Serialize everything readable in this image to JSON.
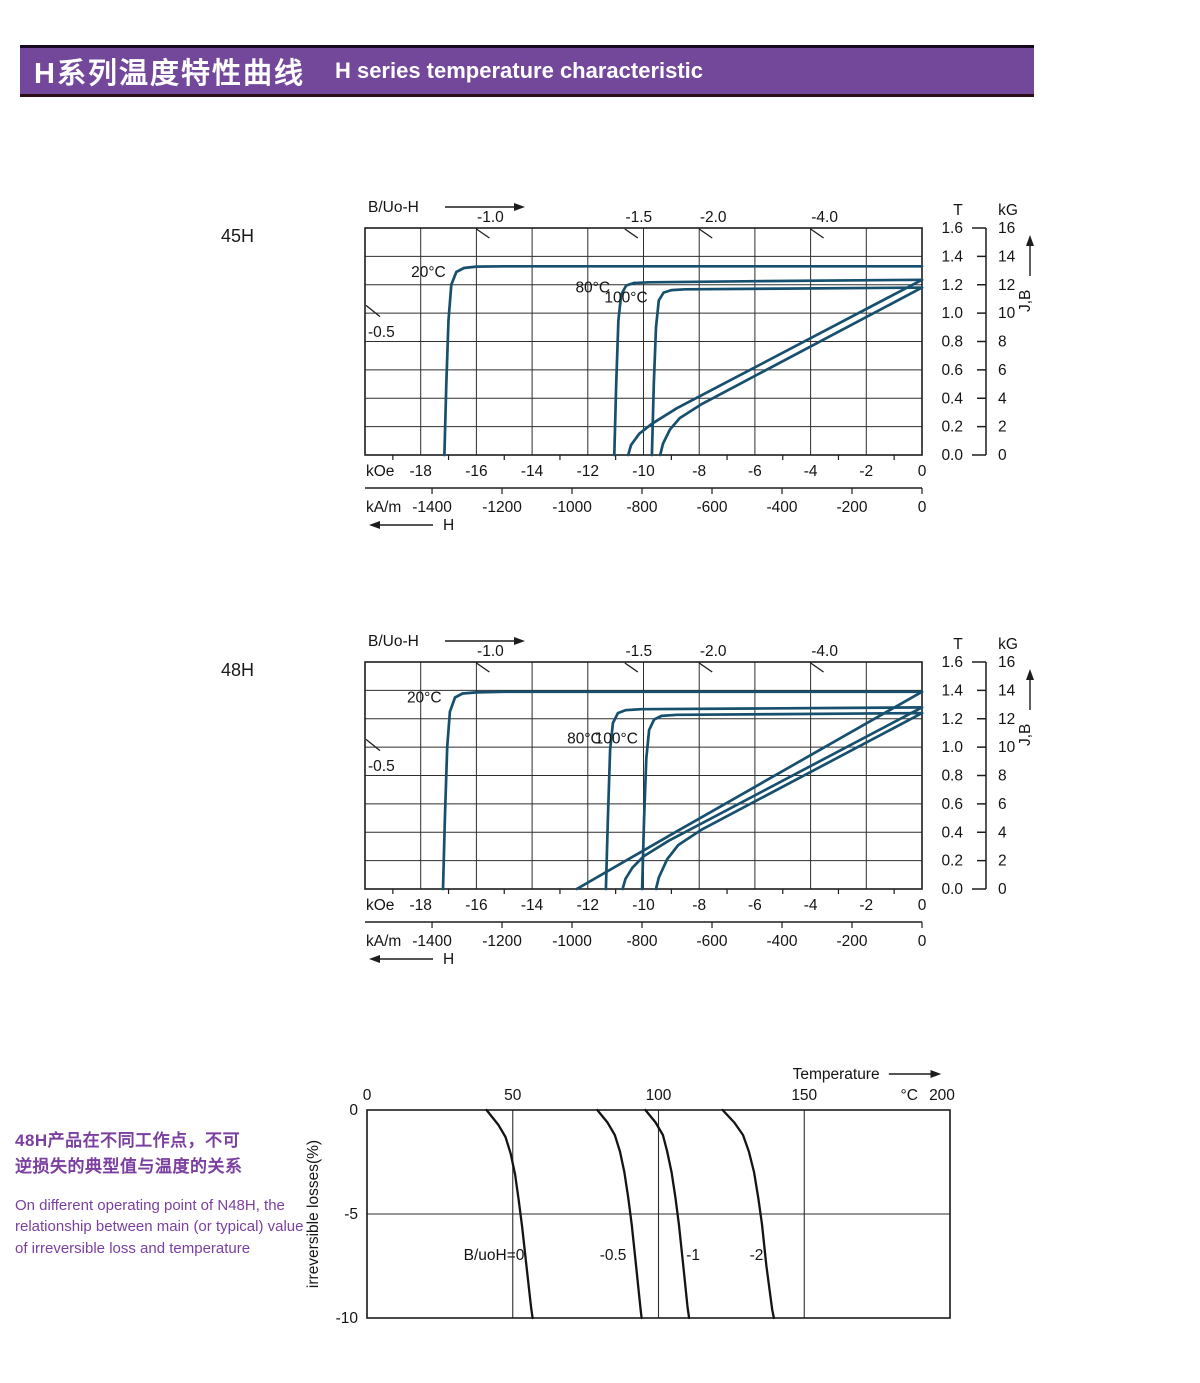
{
  "header": {
    "title_zh": "H系列温度特性曲线",
    "title_en": "H  series temperature characteristic",
    "bg_color": "#73489a",
    "text_color": "#ffffff"
  },
  "description": {
    "zh_line1": "48H产品在不同工作点，不可",
    "zh_line2": "逆损失的典型值与温度的关系",
    "en": "On different operating point of N48H, the relationship between main (or typical) value of irreversible loss and temperature",
    "color": "#7b3fa0"
  },
  "chart_data": [
    {
      "kind": "bh",
      "type": "line",
      "section_label": "45H",
      "axis_header": "B/Uo-H",
      "h_axis_label": "H",
      "curve_color": "#17506e",
      "xlim_kOe": [
        -20,
        0
      ],
      "ylim_kG": [
        0,
        16
      ],
      "koe_unit": "kOe",
      "koe_ticks": [
        -18,
        -16,
        -14,
        -12,
        -10,
        -8,
        -6,
        -4,
        -2,
        0
      ],
      "kam_unit": "kA/m",
      "kam_ticks": [
        -1400,
        -1200,
        -1000,
        -800,
        -600,
        -400,
        -200,
        0
      ],
      "right_axis": {
        "t_header": "T",
        "kg_header": "kG",
        "t_ticks": [
          "1.6",
          "1.4",
          "1.2",
          "1.0",
          "0.8",
          "0.6",
          "0.4",
          "0.2",
          "0.0"
        ],
        "kg_ticks": [
          "16",
          "14",
          "12",
          "10",
          "8",
          "6",
          "4",
          "2",
          "0"
        ],
        "jb_label": "J,B"
      },
      "load_lines": [
        {
          "label": "-1.0",
          "h": -16
        },
        {
          "label": "-1.5",
          "h": -10.67
        },
        {
          "label": "-2.0",
          "h": -8
        },
        {
          "label": "-4.0",
          "h": -4
        }
      ],
      "left_load_line": {
        "label": "-0.5",
        "b_at_left_edge": 10
      },
      "series": [
        {
          "name": "20C-J",
          "points": [
            [
              -17.15,
              0
            ],
            [
              -17.08,
              5
            ],
            [
              -17.0,
              9.5
            ],
            [
              -16.9,
              12.0
            ],
            [
              -16.72,
              12.9
            ],
            [
              -16.45,
              13.18
            ],
            [
              -16.0,
              13.28
            ],
            [
              -15.0,
              13.3
            ],
            [
              0,
              13.3
            ]
          ]
        },
        {
          "name": "80C-J",
          "points": [
            [
              -11.05,
              0
            ],
            [
              -10.98,
              5
            ],
            [
              -10.9,
              9.5
            ],
            [
              -10.8,
              11.3
            ],
            [
              -10.62,
              11.95
            ],
            [
              -10.35,
              12.12
            ],
            [
              -9.8,
              12.17
            ],
            [
              -6,
              12.25
            ],
            [
              0,
              12.35
            ]
          ]
        },
        {
          "name": "80C-B",
          "points": [
            [
              0,
              12.35
            ],
            [
              -8.8,
              3.3
            ],
            [
              -9.7,
              2.2
            ],
            [
              -10.15,
              1.5
            ],
            [
              -10.45,
              0.7
            ],
            [
              -10.55,
              0
            ]
          ]
        },
        {
          "name": "100C-J",
          "points": [
            [
              -9.7,
              0
            ],
            [
              -9.63,
              5
            ],
            [
              -9.55,
              9
            ],
            [
              -9.45,
              10.9
            ],
            [
              -9.28,
              11.45
            ],
            [
              -9.0,
              11.62
            ],
            [
              -8.5,
              11.68
            ],
            [
              -5,
              11.73
            ],
            [
              0,
              11.8
            ]
          ]
        },
        {
          "name": "100C-B",
          "points": [
            [
              0,
              11.8
            ],
            [
              -7.9,
              3.6
            ],
            [
              -8.7,
              2.6
            ],
            [
              -9.05,
              1.8
            ],
            [
              -9.3,
              0.8
            ],
            [
              -9.4,
              0
            ]
          ]
        }
      ],
      "series_labels": [
        {
          "text": "20°C",
          "h": -17.1,
          "b": 12.55,
          "anchor": "end"
        },
        {
          "text": "80°C",
          "h": -11.2,
          "b": 11.45,
          "anchor": "end"
        },
        {
          "text": "100°C",
          "h": -9.85,
          "b": 10.75,
          "anchor": "end"
        }
      ]
    },
    {
      "kind": "bh",
      "type": "line",
      "section_label": "48H",
      "axis_header": "B/Uo-H",
      "h_axis_label": "H",
      "curve_color": "#17506e",
      "xlim_kOe": [
        -20,
        0
      ],
      "ylim_kG": [
        0,
        16
      ],
      "koe_unit": "kOe",
      "koe_ticks": [
        -18,
        -16,
        -14,
        -12,
        -10,
        -8,
        -6,
        -4,
        -2,
        0
      ],
      "kam_unit": "kA/m",
      "kam_ticks": [
        -1400,
        -1200,
        -1000,
        -800,
        -600,
        -400,
        -200,
        0
      ],
      "right_axis": {
        "t_header": "T",
        "kg_header": "kG",
        "t_ticks": [
          "1.6",
          "1.4",
          "1.2",
          "1.0",
          "0.8",
          "0.6",
          "0.4",
          "0.2",
          "0.0"
        ],
        "kg_ticks": [
          "16",
          "14",
          "12",
          "10",
          "8",
          "6",
          "4",
          "2",
          "0"
        ],
        "jb_label": "J,B"
      },
      "load_lines": [
        {
          "label": "-1.0",
          "h": -16
        },
        {
          "label": "-1.5",
          "h": -10.67
        },
        {
          "label": "-2.0",
          "h": -8
        },
        {
          "label": "-4.0",
          "h": -4
        }
      ],
      "left_load_line": {
        "label": "-0.5",
        "b_at_left_edge": 10
      },
      "series": [
        {
          "name": "20C-J",
          "points": [
            [
              -17.2,
              0
            ],
            [
              -17.13,
              5
            ],
            [
              -17.05,
              10
            ],
            [
              -16.95,
              12.5
            ],
            [
              -16.77,
              13.5
            ],
            [
              -16.5,
              13.78
            ],
            [
              -16.0,
              13.86
            ],
            [
              -15.0,
              13.9
            ],
            [
              0,
              13.9
            ]
          ]
        },
        {
          "name": "20C-B",
          "points": [
            [
              0,
              13.9
            ],
            [
              -3,
              10.55
            ],
            [
              -6,
              7.2
            ],
            [
              -9,
              3.85
            ],
            [
              -12.4,
              0
            ]
          ]
        },
        {
          "name": "80C-J",
          "points": [
            [
              -11.35,
              0
            ],
            [
              -11.28,
              5
            ],
            [
              -11.2,
              9.8
            ],
            [
              -11.1,
              11.7
            ],
            [
              -10.92,
              12.4
            ],
            [
              -10.65,
              12.6
            ],
            [
              -10.1,
              12.67
            ],
            [
              -6,
              12.72
            ],
            [
              0,
              12.8
            ]
          ]
        },
        {
          "name": "80C-B",
          "points": [
            [
              0,
              12.8
            ],
            [
              -9.1,
              3.4
            ],
            [
              -10.0,
              2.3
            ],
            [
              -10.4,
              1.5
            ],
            [
              -10.65,
              0.7
            ],
            [
              -10.75,
              0
            ]
          ]
        },
        {
          "name": "100C-J",
          "points": [
            [
              -10.05,
              0
            ],
            [
              -9.98,
              5
            ],
            [
              -9.9,
              9.2
            ],
            [
              -9.8,
              11.2
            ],
            [
              -9.62,
              11.95
            ],
            [
              -9.35,
              12.2
            ],
            [
              -8.8,
              12.28
            ],
            [
              -5,
              12.33
            ],
            [
              0,
              12.4
            ]
          ]
        },
        {
          "name": "100C-B",
          "points": [
            [
              0,
              12.4
            ],
            [
              -7.9,
              4.2
            ],
            [
              -8.75,
              3.1
            ],
            [
              -9.15,
              2.1
            ],
            [
              -9.45,
              0.8
            ],
            [
              -9.55,
              0
            ]
          ]
        }
      ],
      "series_labels": [
        {
          "text": "20°C",
          "h": -17.25,
          "b": 13.15,
          "anchor": "end"
        },
        {
          "text": "80°C",
          "h": -11.5,
          "b": 10.25,
          "anchor": "end"
        },
        {
          "text": "100°C",
          "h": -10.2,
          "b": 10.25,
          "anchor": "end"
        }
      ]
    },
    {
      "kind": "loss",
      "type": "line",
      "top_axis_label": "Temperature",
      "x_unit": "°C",
      "ylabel": "irreversible  losses(%)",
      "curve_color": "#141414",
      "xlim": [
        0,
        200
      ],
      "ylim": [
        -10,
        0
      ],
      "x_ticks": [
        0,
        50,
        100,
        150,
        200
      ],
      "y_ticks": [
        0,
        -5,
        -10
      ],
      "series": [
        {
          "name": "B/uoH=0",
          "points": [
            [
              41,
              0
            ],
            [
              45,
              -0.7
            ],
            [
              47.5,
              -1.3
            ],
            [
              49.3,
              -2.1
            ],
            [
              50.8,
              -3.1
            ],
            [
              52,
              -4.3
            ],
            [
              53.2,
              -5.6
            ],
            [
              54.8,
              -7.6
            ],
            [
              56.3,
              -9.5
            ],
            [
              56.8,
              -10
            ]
          ]
        },
        {
          "name": "-0.5",
          "points": [
            [
              79,
              0
            ],
            [
              82.5,
              -0.6
            ],
            [
              85,
              -1.2
            ],
            [
              86.8,
              -2
            ],
            [
              88.3,
              -3
            ],
            [
              89.6,
              -4.2
            ],
            [
              90.8,
              -5.5
            ],
            [
              92.3,
              -7.5
            ],
            [
              93.8,
              -9.5
            ],
            [
              94.2,
              -10
            ]
          ]
        },
        {
          "name": "-1",
          "points": [
            [
              95.5,
              0
            ],
            [
              99,
              -0.6
            ],
            [
              101.5,
              -1.2
            ],
            [
              103,
              -2
            ],
            [
              104.5,
              -3
            ],
            [
              105.8,
              -4.2
            ],
            [
              107,
              -5.5
            ],
            [
              108.5,
              -7.5
            ],
            [
              110,
              -9.5
            ],
            [
              110.5,
              -10
            ]
          ]
        },
        {
          "name": "-2",
          "points": [
            [
              122,
              0
            ],
            [
              126,
              -0.6
            ],
            [
              129,
              -1.2
            ],
            [
              131,
              -2
            ],
            [
              132.8,
              -3
            ],
            [
              134.2,
              -4.2
            ],
            [
              135.5,
              -5.5
            ],
            [
              137,
              -7.5
            ],
            [
              139,
              -9.6
            ],
            [
              139.6,
              -10
            ]
          ]
        }
      ],
      "series_labels": [
        {
          "text": "B/uoH=0",
          "t": 54,
          "loss": -7.2,
          "anchor": "end"
        },
        {
          "text": "-0.5",
          "t": 89,
          "loss": -7.2,
          "anchor": "end"
        },
        {
          "text": "-1",
          "t": 109.5,
          "loss": -7.2,
          "anchor": "start"
        },
        {
          "text": "-2",
          "t": 136,
          "loss": -7.2,
          "anchor": "end"
        }
      ]
    }
  ]
}
